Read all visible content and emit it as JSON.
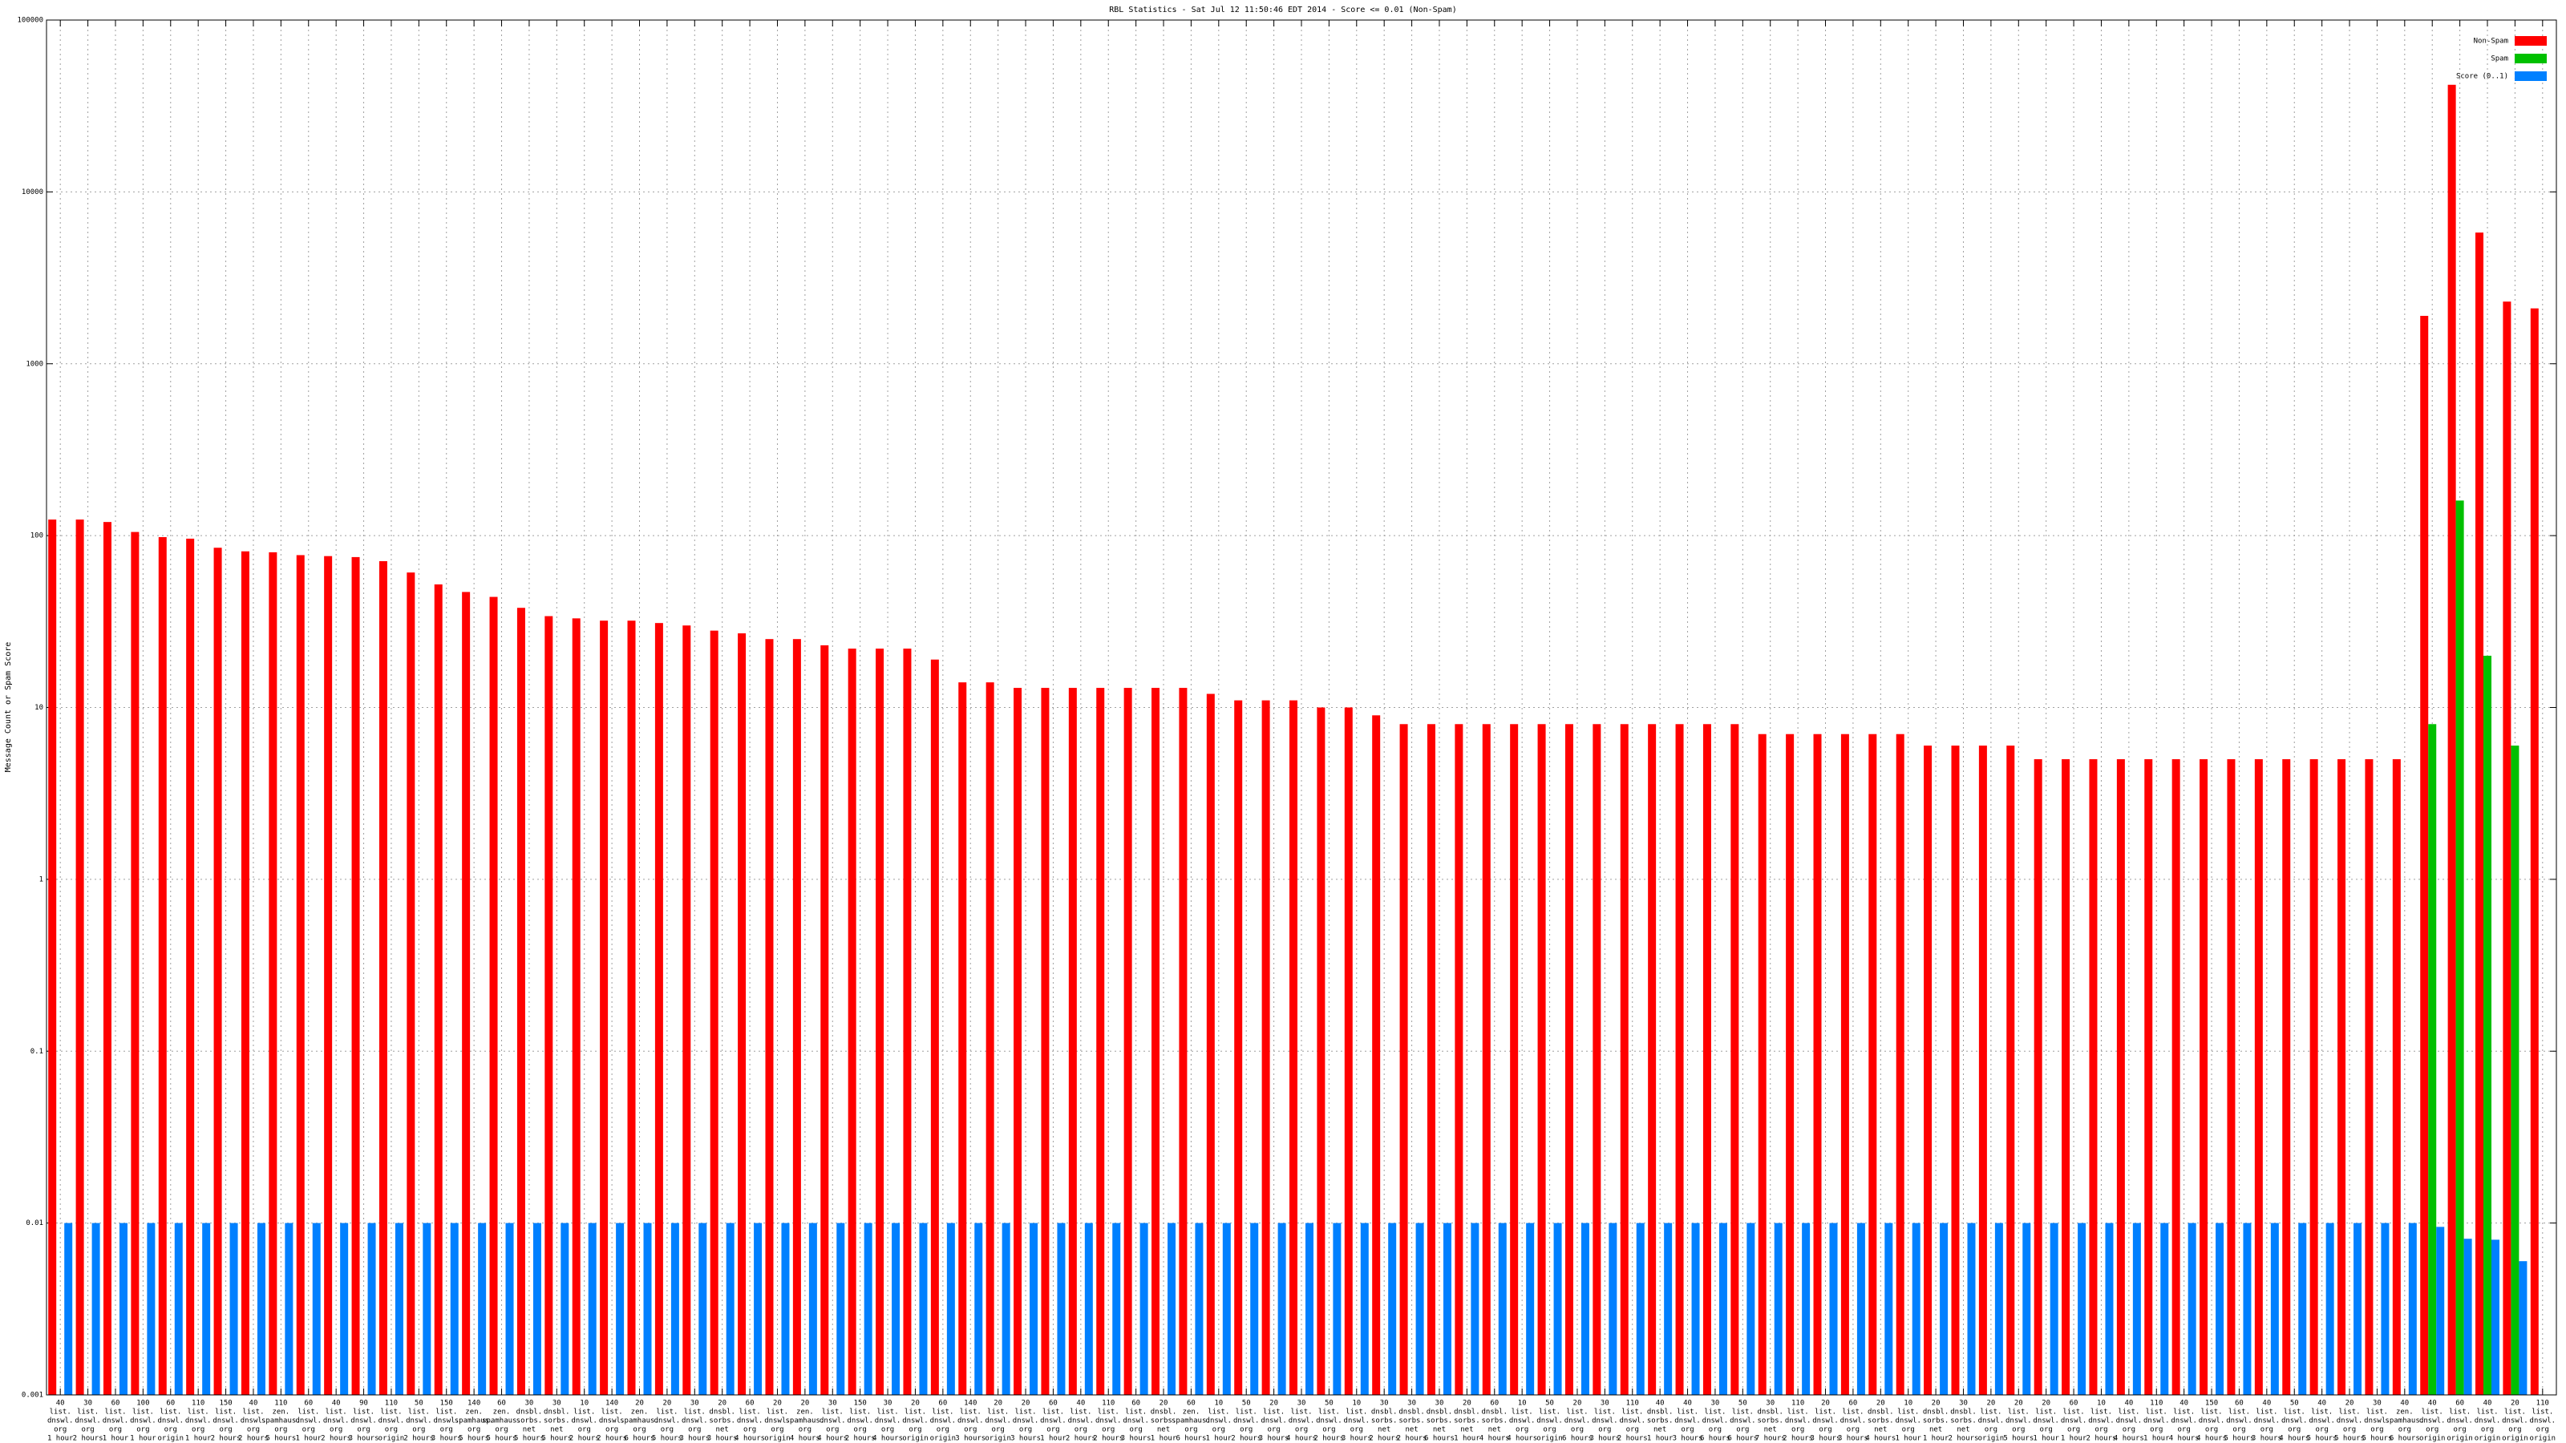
{
  "chart_data": {
    "type": "bar",
    "title": "RBL Statistics - Sat Jul 12 11:50:46 EDT 2014 - Score <= 0.01 (Non-Spam)",
    "y_label": "Message Count or Spam Score",
    "log_scale": true,
    "grid": true,
    "legend": "top-right",
    "ylim": [
      0.001,
      100000
    ],
    "yticks": [
      0.001,
      0.01,
      0.1,
      1,
      10,
      100,
      1000,
      10000,
      100000
    ],
    "categories": [
      [
        "40",
        "list.",
        "dnswl.",
        "org",
        "1 hour"
      ],
      [
        "30",
        "list.",
        "dnswl.",
        "org",
        "2 hours"
      ],
      [
        "60",
        "list.",
        "dnswl.",
        "org",
        "1 hour"
      ],
      [
        "100",
        "list.",
        "dnswl.",
        "org",
        "1 hour"
      ],
      [
        "60",
        "list.",
        "dnswl.",
        "org",
        "origin"
      ],
      [
        "110",
        "list.",
        "dnswl.",
        "org",
        "1 hour"
      ],
      [
        "150",
        "list.",
        "dnswl.",
        "org",
        "2 hours"
      ],
      [
        "40",
        "list.",
        "dnswl.",
        "org",
        "2 hours"
      ],
      [
        "110",
        "zen.",
        "spamhaus.",
        "org",
        "5 hours"
      ],
      [
        "60",
        "list.",
        "dnswl.",
        "org",
        "1 hour"
      ],
      [
        "40",
        "list.",
        "dnswl.",
        "org",
        "2 hours"
      ],
      [
        "90",
        "list.",
        "dnswl.",
        "org",
        "3 hours"
      ],
      [
        "110",
        "list.",
        "dnswl.",
        "org",
        "origin"
      ],
      [
        "50",
        "list.",
        "dnswl.",
        "org",
        "2 hours"
      ],
      [
        "150",
        "list.",
        "dnswl.",
        "org",
        "3 hours"
      ],
      [
        "140",
        "zen.",
        "spamhaus.",
        "org",
        "5 hours"
      ],
      [
        "60",
        "zen.",
        "spamhaus.",
        "org",
        "5 hours"
      ],
      [
        "30",
        "dnsbl.",
        "sorbs.",
        "net",
        "5 hours"
      ],
      [
        "30",
        "dnsbl.",
        "sorbs.",
        "net",
        "5 hours"
      ],
      [
        "10",
        "list.",
        "dnswl.",
        "org",
        "2 hours"
      ],
      [
        "140",
        "list.",
        "dnswl.",
        "org",
        "2 hours"
      ],
      [
        "20",
        "zen.",
        "spamhaus.",
        "org",
        "6 hours"
      ],
      [
        "20",
        "list.",
        "dnswl.",
        "org",
        "5 hours"
      ],
      [
        "30",
        "list.",
        "dnswl.",
        "org",
        "3 hours"
      ],
      [
        "20",
        "dnsbl.",
        "sorbs.",
        "net",
        "3 hours"
      ],
      [
        "60",
        "list.",
        "dnswl.",
        "org",
        "4 hours"
      ],
      [
        "20",
        "list.",
        "dnswl.",
        "org",
        "origin"
      ],
      [
        "20",
        "zen.",
        "spamhaus.",
        "org",
        "4 hours"
      ],
      [
        "30",
        "list.",
        "dnswl.",
        "org",
        "4 hours"
      ],
      [
        "150",
        "list.",
        "dnswl.",
        "org",
        "2 hours"
      ],
      [
        "30",
        "list.",
        "dnswl.",
        "org",
        "4 hours"
      ],
      [
        "20",
        "list.",
        "dnswl.",
        "org",
        "origin"
      ],
      [
        "60",
        "list.",
        "dnswl.",
        "org",
        "origin"
      ],
      [
        "140",
        "list.",
        "dnswl.",
        "org",
        "3 hours"
      ],
      [
        "20",
        "list.",
        "dnswl.",
        "org",
        "origin"
      ],
      [
        "20",
        "list.",
        "dnswl.",
        "org",
        "3 hours"
      ],
      [
        "60",
        "list.",
        "dnswl.",
        "org",
        "1 hour"
      ],
      [
        "40",
        "list.",
        "dnswl.",
        "org",
        "2 hours"
      ],
      [
        "110",
        "list.",
        "dnswl.",
        "org",
        "2 hours"
      ],
      [
        "60",
        "list.",
        "dnswl.",
        "org",
        "3 hours"
      ],
      [
        "20",
        "dnsbl.",
        "sorbs.",
        "net",
        "1 hour"
      ],
      [
        "60",
        "zen.",
        "spamhaus.",
        "org",
        "6 hours"
      ],
      [
        "10",
        "list.",
        "dnswl.",
        "org",
        "1 hour"
      ],
      [
        "50",
        "list.",
        "dnswl.",
        "org",
        "2 hours"
      ],
      [
        "20",
        "list.",
        "dnswl.",
        "org",
        "3 hours"
      ],
      [
        "30",
        "list.",
        "dnswl.",
        "org",
        "4 hours"
      ],
      [
        "50",
        "list.",
        "dnswl.",
        "org",
        "2 hours"
      ],
      [
        "10",
        "list.",
        "dnswl.",
        "org",
        "3 hours"
      ],
      [
        "30",
        "dnsbl.",
        "sorbs.",
        "net",
        "2 hours"
      ],
      [
        "30",
        "dnsbl.",
        "sorbs.",
        "net",
        "2 hours"
      ],
      [
        "30",
        "dnsbl.",
        "sorbs.",
        "net",
        "6 hours"
      ],
      [
        "20",
        "dnsbl.",
        "sorbs.",
        "net",
        "1 hour"
      ],
      [
        "60",
        "dnsbl.",
        "sorbs.",
        "net",
        "4 hours"
      ],
      [
        "10",
        "list.",
        "dnswl.",
        "org",
        "4 hours"
      ],
      [
        "50",
        "list.",
        "dnswl.",
        "org",
        "origin"
      ],
      [
        "20",
        "list.",
        "dnswl.",
        "org",
        "6 hours"
      ],
      [
        "30",
        "list.",
        "dnswl.",
        "org",
        "3 hours"
      ],
      [
        "110",
        "list.",
        "dnswl.",
        "org",
        "2 hours"
      ],
      [
        "40",
        "dnsbl.",
        "sorbs.",
        "net",
        "1 hour"
      ],
      [
        "40",
        "list.",
        "dnswl.",
        "org",
        "3 hours"
      ],
      [
        "30",
        "list.",
        "dnswl.",
        "org",
        "6 hours"
      ],
      [
        "50",
        "list.",
        "dnswl.",
        "org",
        "6 hours"
      ],
      [
        "30",
        "dnsbl.",
        "sorbs.",
        "net",
        "7 hours"
      ],
      [
        "110",
        "list.",
        "dnswl.",
        "org",
        "2 hours"
      ],
      [
        "20",
        "list.",
        "dnswl.",
        "org",
        "3 hours"
      ],
      [
        "60",
        "list.",
        "dnswl.",
        "org",
        "3 hours"
      ],
      [
        "20",
        "dnsbl.",
        "sorbs.",
        "net",
        "4 hours"
      ],
      [
        "10",
        "list.",
        "dnswl.",
        "org",
        "1 hour"
      ],
      [
        "20",
        "dnsbl.",
        "sorbs.",
        "net",
        "1 hour"
      ],
      [
        "30",
        "dnsbl.",
        "sorbs.",
        "net",
        "2 hours"
      ],
      [
        "20",
        "list.",
        "dnswl.",
        "org",
        "origin"
      ],
      [
        "20",
        "list.",
        "dnswl.",
        "org",
        "5 hours"
      ],
      [
        "20",
        "list.",
        "dnswl.",
        "org",
        "1 hour"
      ],
      [
        "60",
        "list.",
        "dnswl.",
        "org",
        "1 hour"
      ],
      [
        "10",
        "list.",
        "dnswl.",
        "org",
        "2 hours"
      ],
      [
        "40",
        "list.",
        "dnswl.",
        "org",
        "4 hours"
      ],
      [
        "110",
        "list.",
        "dnswl.",
        "org",
        "1 hour"
      ],
      [
        "40",
        "list.",
        "dnswl.",
        "org",
        "4 hours"
      ],
      [
        "150",
        "list.",
        "dnswl.",
        "org",
        "4 hours"
      ],
      [
        "60",
        "list.",
        "dnswl.",
        "org",
        "5 hours"
      ],
      [
        "40",
        "list.",
        "dnswl.",
        "org",
        "3 hours"
      ],
      [
        "50",
        "list.",
        "dnswl.",
        "org",
        "4 hours"
      ],
      [
        "40",
        "list.",
        "dnswl.",
        "org",
        "5 hours"
      ],
      [
        "20",
        "list.",
        "dnswl.",
        "org",
        "5 hours"
      ],
      [
        "30",
        "list.",
        "dnswl.",
        "org",
        "5 hours"
      ],
      [
        "40",
        "zen.",
        "spamhaus.",
        "org",
        "6 hours"
      ],
      [
        "40",
        "list.",
        "dnswl.",
        "org",
        "origin"
      ],
      [
        "60",
        "list.",
        "dnswl.",
        "org",
        "origin"
      ],
      [
        "40",
        "list.",
        "dnswl.",
        "org",
        "origin"
      ],
      [
        "20",
        "list.",
        "dnswl.",
        "org",
        "origin"
      ],
      [
        "110",
        "list.",
        "dnswl.",
        "org",
        "origin"
      ]
    ],
    "series": [
      {
        "name": "Non-Spam",
        "color": "#ff0000",
        "values": [
          124,
          124,
          120,
          105,
          98,
          96,
          85,
          81,
          80,
          77,
          76,
          75,
          71,
          61,
          52,
          47,
          44,
          38,
          34,
          33,
          32,
          32,
          31,
          30,
          28,
          27,
          25,
          25,
          23,
          22,
          22,
          22,
          19,
          14,
          14,
          13,
          13,
          13,
          13,
          13,
          13,
          13,
          12,
          11,
          11,
          11,
          10,
          10,
          9,
          8,
          8,
          8,
          8,
          8,
          8,
          8,
          8,
          8,
          8,
          8,
          8,
          8,
          7,
          7,
          7,
          7,
          7,
          7,
          6,
          6,
          6,
          6,
          5,
          5,
          5,
          5,
          5,
          5,
          5,
          5,
          5,
          5,
          5,
          5,
          5,
          5,
          1900,
          42000,
          5800,
          2300,
          2100
        ]
      },
      {
        "name": "Spam",
        "color": "#00c000",
        "values": [
          0,
          0,
          0,
          0,
          0,
          0,
          0,
          0,
          0,
          0,
          0,
          0,
          0,
          0,
          0,
          0,
          0,
          0,
          0,
          0,
          0,
          0,
          0,
          0,
          0,
          0,
          0,
          0,
          0,
          0,
          0,
          0,
          0,
          0,
          0,
          0,
          0,
          0,
          0,
          0,
          0,
          0,
          0,
          0,
          0,
          0,
          0,
          0,
          0,
          0,
          0,
          0,
          0,
          0,
          0,
          0,
          0,
          0,
          0,
          0,
          0,
          0,
          0,
          0,
          0,
          0,
          0,
          0,
          0,
          0,
          0,
          0,
          0,
          0,
          0,
          0,
          0,
          0,
          0,
          0,
          0,
          0,
          0,
          0,
          0,
          0,
          8,
          160,
          20,
          6,
          0
        ]
      },
      {
        "name": "Score (0..1)",
        "color": "#0080ff",
        "values": [
          0.01,
          0.01,
          0.01,
          0.01,
          0.01,
          0.01,
          0.01,
          0.01,
          0.01,
          0.01,
          0.01,
          0.01,
          0.01,
          0.01,
          0.01,
          0.01,
          0.01,
          0.01,
          0.01,
          0.01,
          0.01,
          0.01,
          0.01,
          0.01,
          0.01,
          0.01,
          0.01,
          0.01,
          0.01,
          0.01,
          0.01,
          0.01,
          0.01,
          0.01,
          0.01,
          0.01,
          0.01,
          0.01,
          0.01,
          0.01,
          0.01,
          0.01,
          0.01,
          0.01,
          0.01,
          0.01,
          0.01,
          0.01,
          0.01,
          0.01,
          0.01,
          0.01,
          0.01,
          0.01,
          0.01,
          0.01,
          0.01,
          0.01,
          0.01,
          0.01,
          0.01,
          0.01,
          0.01,
          0.01,
          0.01,
          0.01,
          0.01,
          0.01,
          0.01,
          0.01,
          0.01,
          0.01,
          0.01,
          0.01,
          0.01,
          0.01,
          0.01,
          0.01,
          0.01,
          0.01,
          0.01,
          0.01,
          0.01,
          0.01,
          0.01,
          0.01,
          0.0095,
          0.0081,
          0.008,
          0.006,
          0
        ]
      }
    ]
  }
}
